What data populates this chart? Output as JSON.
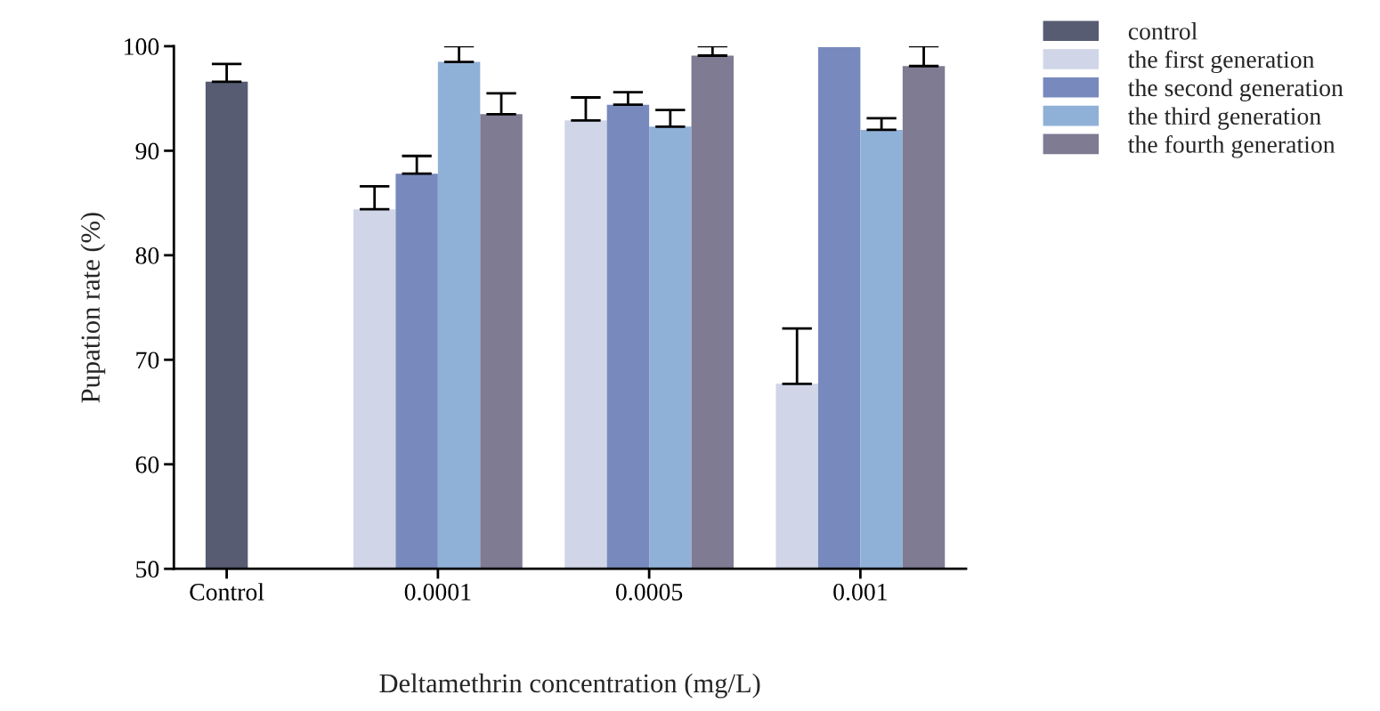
{
  "chart_data": {
    "type": "bar",
    "xlabel": "Deltamethrin concentration (mg/L)",
    "ylabel": "Pupation rate (%)",
    "categories": [
      "Control",
      "0.0001",
      "0.0005",
      "0.001"
    ],
    "series": [
      {
        "name": "control",
        "color": "#575c72",
        "values": [
          96.6,
          null,
          null,
          null
        ],
        "errors": [
          [
            96.6,
            98.3
          ],
          null,
          null,
          null
        ]
      },
      {
        "name": "the first generation",
        "color": "#d0d6e8",
        "values": [
          null,
          84.4,
          92.9,
          67.7
        ],
        "errors": [
          null,
          [
            84.4,
            86.6
          ],
          [
            92.9,
            95.1
          ],
          [
            67.7,
            73.0
          ]
        ]
      },
      {
        "name": "the second generation",
        "color": "#7889bd",
        "values": [
          null,
          87.8,
          94.4,
          99.9
        ],
        "errors": [
          null,
          [
            87.8,
            89.5
          ],
          [
            94.4,
            95.6
          ],
          null
        ]
      },
      {
        "name": "the third generation",
        "color": "#90b1d7",
        "values": [
          null,
          98.5,
          92.3,
          92.0
        ],
        "errors": [
          null,
          [
            98.5,
            100
          ],
          [
            92.3,
            93.9
          ],
          [
            92.0,
            93.1
          ]
        ]
      },
      {
        "name": "the fourth generation",
        "color": "#7f7b93",
        "values": [
          null,
          93.5,
          99.1,
          98.1
        ],
        "errors": [
          null,
          [
            93.5,
            95.5
          ],
          [
            99.1,
            100
          ],
          [
            98.1,
            100
          ]
        ]
      }
    ],
    "ylim": [
      50,
      100
    ],
    "yticks": [
      50,
      60,
      70,
      80,
      90,
      100
    ],
    "grid": false,
    "legend": "top right"
  }
}
